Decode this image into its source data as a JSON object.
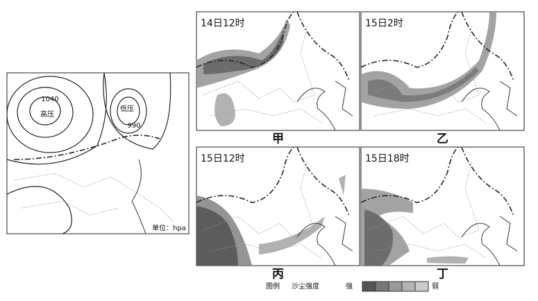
{
  "pressure_map": {
    "isobar_high": "1040",
    "high_label": "高压",
    "low_label": "低压",
    "isobar_low": "990",
    "unit": "单位：hpa"
  },
  "panels": [
    {
      "time": "14日12时",
      "label": "甲"
    },
    {
      "time": "15日2时",
      "label": "乙"
    },
    {
      "time": "15日12时",
      "label": "丙"
    },
    {
      "time": "15日18时",
      "label": "丁"
    }
  ],
  "legend": {
    "title": "图例",
    "name": "沙尘强度",
    "strong": "强",
    "weak": "弱"
  }
}
